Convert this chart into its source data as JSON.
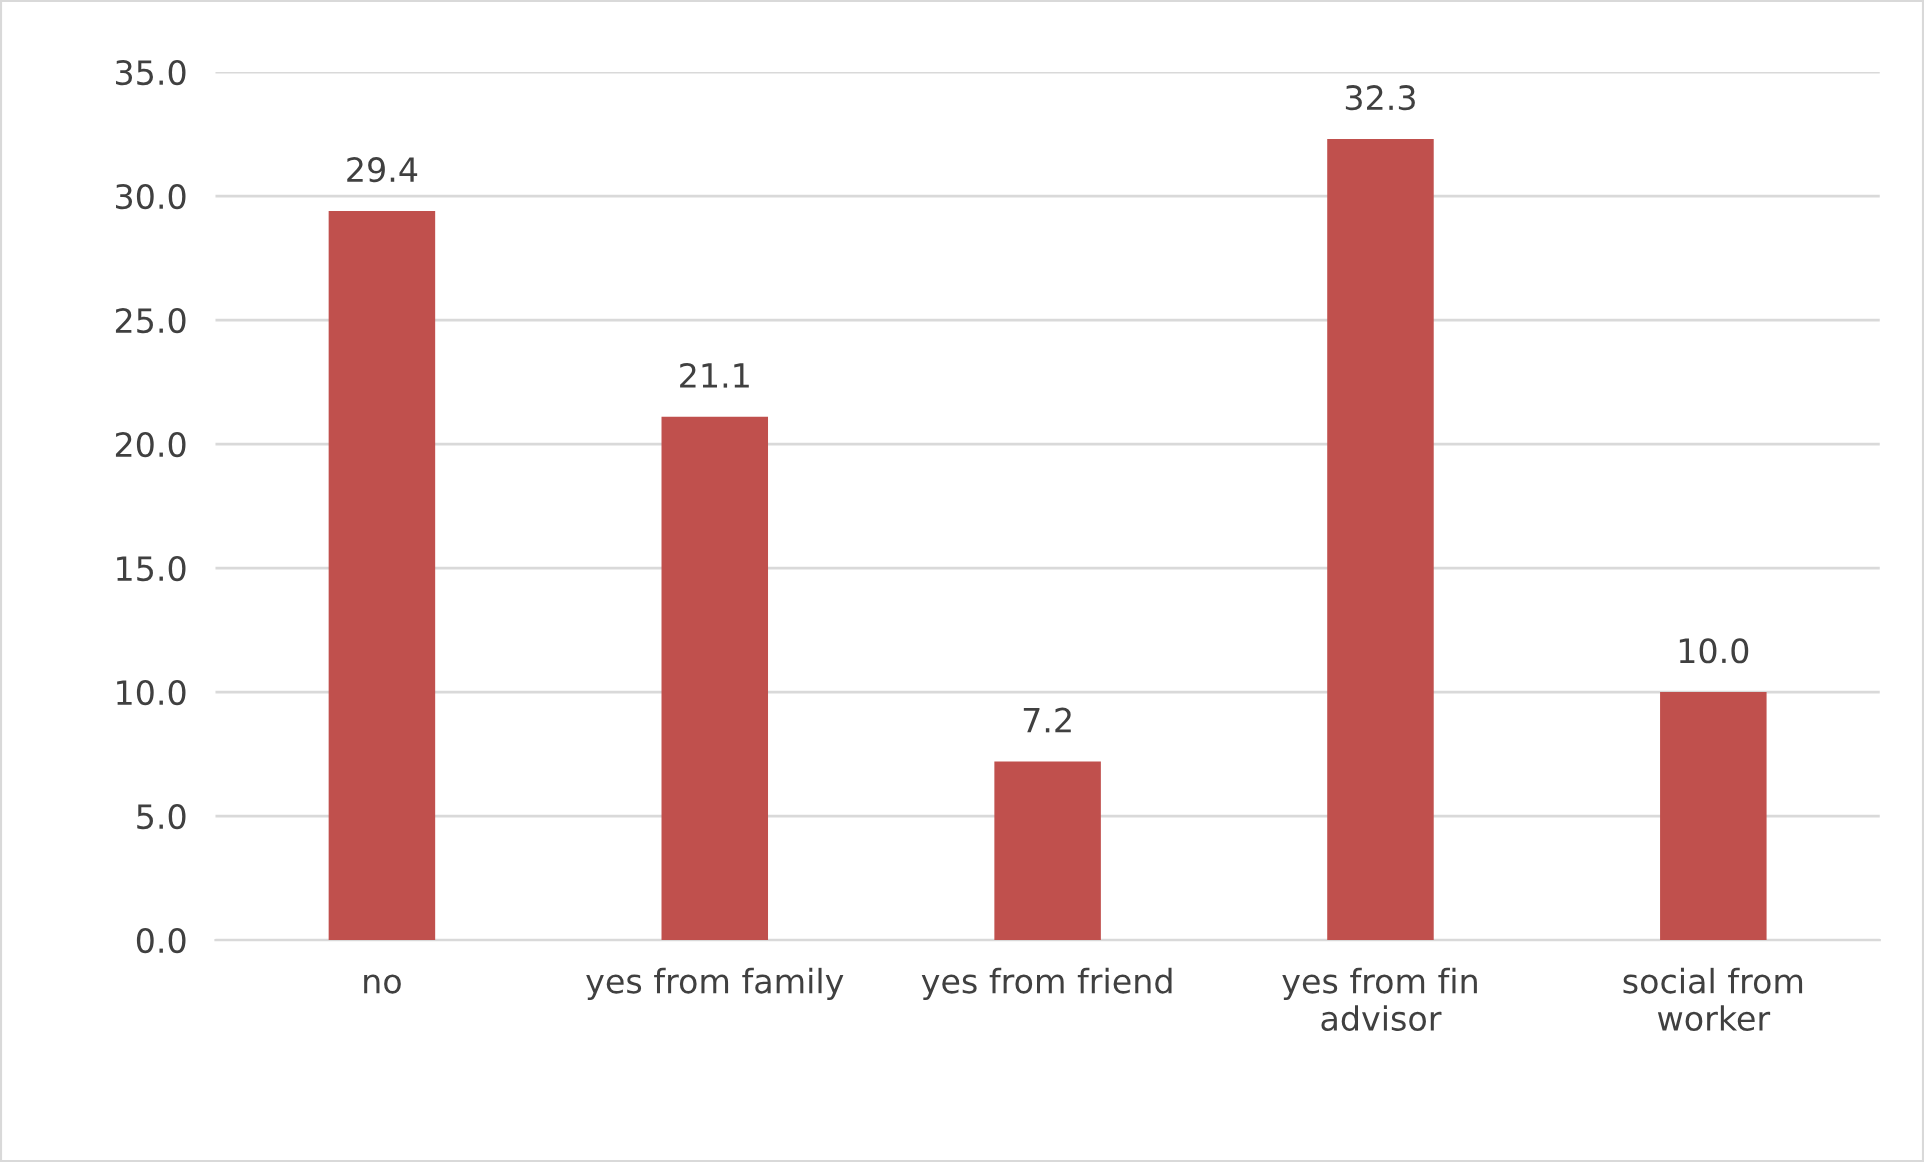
{
  "chart_data": {
    "type": "bar",
    "categories": [
      "no",
      "yes from family",
      "yes from friend",
      "yes from fin\nadvisor",
      "social from\nworker"
    ],
    "values": [
      29.4,
      21.1,
      7.2,
      32.3,
      10.0
    ],
    "value_labels": [
      "29.4",
      "21.1",
      "7.2",
      "32.3",
      "10.0"
    ],
    "color": "#c0504d",
    "ylim": [
      0,
      35
    ],
    "yticks": [
      {
        "value": 0,
        "label": "0.0"
      },
      {
        "value": 5,
        "label": "5.0"
      },
      {
        "value": 10,
        "label": "10.0"
      },
      {
        "value": 15,
        "label": "15.0"
      },
      {
        "value": 20,
        "label": "20.0"
      },
      {
        "value": 25,
        "label": "25.0"
      },
      {
        "value": 30,
        "label": "30.0"
      },
      {
        "value": 35,
        "label": "35.0"
      }
    ],
    "grid": "y"
  }
}
